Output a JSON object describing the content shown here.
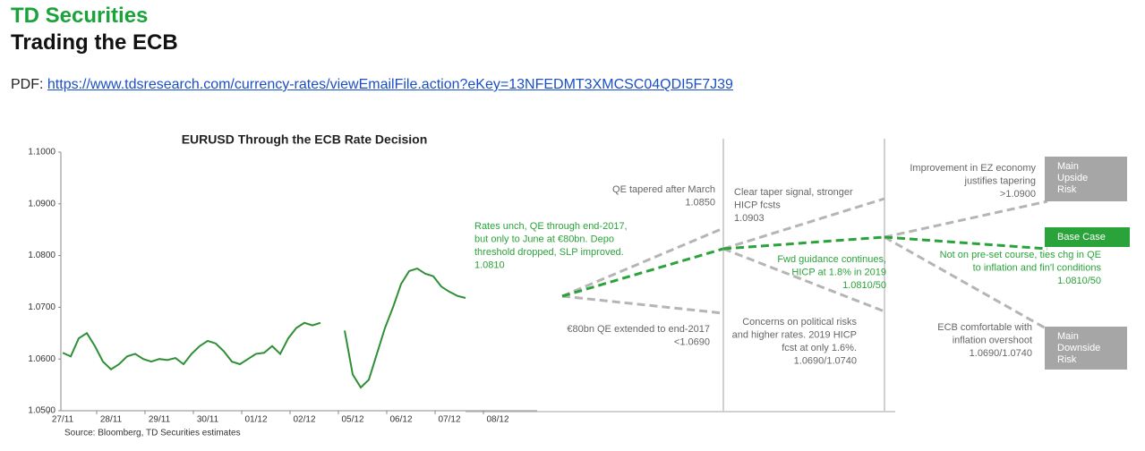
{
  "header": {
    "brand": "TD Securities",
    "title": "Trading the ECB"
  },
  "pdf": {
    "label": "PDF:",
    "url": "https://www.tdsresearch.com/currency-rates/viewEmailFile.action?eKey=13NFEDMT3XMCSC04QDI5F7J39"
  },
  "chart_data": {
    "type": "line",
    "title": "EURUSD Through the ECB Rate Decision",
    "source": "Source: Bloomberg, TD Securities estimates",
    "categories": [
      "27/11",
      null,
      null,
      null,
      null,
      null,
      "28/11",
      null,
      null,
      null,
      null,
      null,
      "29/11",
      null,
      null,
      null,
      null,
      null,
      "30/11",
      null,
      null,
      null,
      null,
      null,
      "01/12",
      null,
      null,
      null,
      null,
      null,
      "02/12",
      null,
      null,
      null,
      null,
      null,
      "05/12",
      null,
      null,
      null,
      null,
      null,
      "06/12",
      null,
      null,
      null,
      null,
      null,
      "07/12",
      null,
      null,
      null,
      null,
      null,
      "08/12",
      null,
      null,
      null,
      null,
      null
    ],
    "series": [
      {
        "name": "EURUSD",
        "color": "#2f8f35",
        "values": [
          1.0612,
          1.0605,
          1.064,
          1.065,
          1.0625,
          1.0595,
          1.058,
          1.059,
          1.0605,
          1.061,
          1.06,
          1.0595,
          1.06,
          1.0598,
          1.0602,
          1.059,
          1.061,
          1.0625,
          1.0635,
          1.063,
          1.0615,
          1.0595,
          1.059,
          1.06,
          1.061,
          1.0612,
          1.0625,
          1.061,
          1.064,
          1.066,
          1.067,
          1.0665,
          1.067,
          null,
          null,
          1.0655,
          1.057,
          1.0545,
          1.056,
          1.061,
          1.066,
          1.07,
          1.0745,
          1.077,
          1.0775,
          1.0765,
          1.076,
          1.074,
          1.073,
          1.0722,
          1.0718,
          null,
          null,
          null,
          null,
          null,
          null,
          null,
          null,
          null
        ]
      }
    ],
    "ylim": [
      1.05,
      1.1
    ],
    "yticks": [
      {
        "value": 1.05,
        "label": "1.0500"
      },
      {
        "value": 1.06,
        "label": "1.0600"
      },
      {
        "value": 1.07,
        "label": "1.0700"
      },
      {
        "value": 1.08,
        "label": "1.0800"
      },
      {
        "value": 1.09,
        "label": "1.0900"
      },
      {
        "value": 1.1,
        "label": "1.1000"
      }
    ],
    "annotations": [
      {
        "color": "#2aa33a",
        "lines": [
          "Rates unch, QE through end-2017,",
          "but only to June at €80bn. Depo",
          "threshold dropped, SLP improved.",
          " 1.0810"
        ]
      },
      {
        "color": "#666666",
        "lines": [
          "QE tapered after March",
          "1.0850"
        ]
      },
      {
        "color": "#666666",
        "lines": [
          "€80bn QE extended to end-2017",
          "<1.0690"
        ]
      },
      {
        "color": "#666666",
        "lines": [
          "Clear taper signal, stronger",
          "HICP fcsts",
          "1.0903"
        ]
      },
      {
        "color": "#2aa33a",
        "lines": [
          "Fwd guidance continues,",
          "HICP at 1.8% in 2019",
          "1.0810/50"
        ]
      },
      {
        "color": "#666666",
        "lines": [
          "Concerns on political risks",
          "and higher rates. 2019 HICP",
          "fcst at only 1.6%.",
          "1.0690/1.0740"
        ]
      },
      {
        "color": "#666666",
        "lines": [
          "Improvement in EZ economy",
          "justifies tapering",
          ">1.0900"
        ]
      },
      {
        "color": "#2aa33a",
        "lines": [
          "Not on pre-set course, ties chg in QE",
          "to inflation and fin'l conditions",
          "1.0810/50"
        ]
      },
      {
        "color": "#666666",
        "lines": [
          "ECB comfortable with",
          "inflation overshoot",
          "1.0690/1.0740"
        ]
      }
    ],
    "outcomes": [
      {
        "color": "#a6a6a6",
        "lines": [
          "Main",
          "Upside",
          "Risk"
        ]
      },
      {
        "color": "#2aa33a",
        "lines": [
          "Base Case"
        ]
      },
      {
        "color": "#a6a6a6",
        "lines": [
          "Main",
          "Downside",
          "Risk"
        ]
      }
    ]
  }
}
